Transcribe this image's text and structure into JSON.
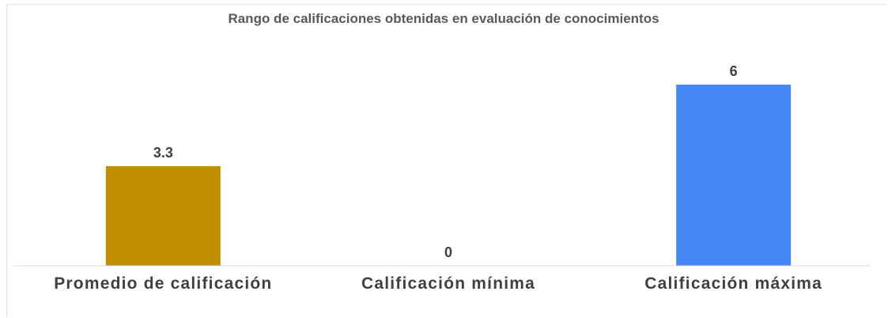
{
  "chart_data": {
    "type": "bar",
    "title": "Rango de calificaciones obtenidas en evaluación de conocimientos",
    "categories": [
      "Promedio de calificación",
      "Calificación mínima",
      "Calificación máxima"
    ],
    "values": [
      3.3,
      0,
      6
    ],
    "colors": [
      "#bf8f00",
      "#a5a5a5",
      "#4488f5"
    ]
  }
}
